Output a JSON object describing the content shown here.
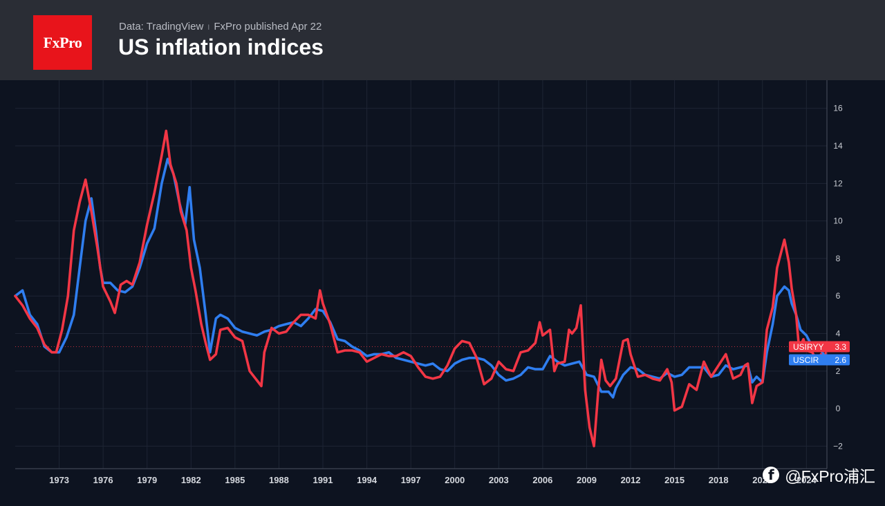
{
  "header": {
    "logo_text": "FxPro",
    "source": "Data: TradingView",
    "separator": "I",
    "published": "FxPro published Apr 22",
    "title": "US inflation indices"
  },
  "watermark": {
    "icon": "facebook-icon",
    "text": "@FxPro浦汇"
  },
  "colors": {
    "usiryy": "#f23645",
    "uscir": "#2f7ef0",
    "background": "#0d1320",
    "header": "#2a2d35"
  },
  "chart_data": {
    "type": "line",
    "title": "US inflation indices",
    "x_ticks": [
      1973,
      1976,
      1979,
      1982,
      1985,
      1988,
      1991,
      1994,
      1997,
      2000,
      2003,
      2006,
      2009,
      2012,
      2015,
      2018,
      2021,
      2024
    ],
    "x_range": [
      1970.0,
      2025.4
    ],
    "y_ticks": [
      -2,
      0,
      2,
      4,
      6,
      8,
      10,
      12,
      14,
      16
    ],
    "y_range": [
      -3.2,
      17.5
    ],
    "grid": true,
    "reference_line": 3.3,
    "series": [
      {
        "name": "USIRYY",
        "last_value": "3.3",
        "points": [
          [
            1970.0,
            6.0
          ],
          [
            1970.5,
            5.5
          ],
          [
            1971.0,
            4.8
          ],
          [
            1971.5,
            4.3
          ],
          [
            1972.0,
            3.4
          ],
          [
            1972.5,
            3.0
          ],
          [
            1972.8,
            3.0
          ],
          [
            1973.2,
            4.2
          ],
          [
            1973.6,
            6.0
          ],
          [
            1974.0,
            9.5
          ],
          [
            1974.4,
            11.0
          ],
          [
            1974.8,
            12.2
          ],
          [
            1975.2,
            10.5
          ],
          [
            1975.6,
            8.6
          ],
          [
            1976.0,
            6.5
          ],
          [
            1976.5,
            5.7
          ],
          [
            1976.8,
            5.1
          ],
          [
            1977.2,
            6.6
          ],
          [
            1977.6,
            6.8
          ],
          [
            1978.0,
            6.6
          ],
          [
            1978.5,
            7.8
          ],
          [
            1979.0,
            9.8
          ],
          [
            1979.5,
            11.5
          ],
          [
            1980.0,
            13.5
          ],
          [
            1980.3,
            14.8
          ],
          [
            1980.6,
            13.0
          ],
          [
            1981.0,
            12.0
          ],
          [
            1981.3,
            10.5
          ],
          [
            1981.7,
            9.5
          ],
          [
            1982.0,
            7.5
          ],
          [
            1982.3,
            6.3
          ],
          [
            1982.7,
            4.5
          ],
          [
            1983.0,
            3.5
          ],
          [
            1983.3,
            2.6
          ],
          [
            1983.7,
            2.9
          ],
          [
            1984.0,
            4.2
          ],
          [
            1984.5,
            4.3
          ],
          [
            1985.0,
            3.8
          ],
          [
            1985.5,
            3.6
          ],
          [
            1986.0,
            2.0
          ],
          [
            1986.5,
            1.5
          ],
          [
            1986.8,
            1.2
          ],
          [
            1987.0,
            3.0
          ],
          [
            1987.5,
            4.3
          ],
          [
            1988.0,
            4.0
          ],
          [
            1988.5,
            4.1
          ],
          [
            1989.0,
            4.6
          ],
          [
            1989.5,
            5.0
          ],
          [
            1990.0,
            5.0
          ],
          [
            1990.5,
            4.8
          ],
          [
            1990.8,
            6.3
          ],
          [
            1991.0,
            5.6
          ],
          [
            1991.5,
            4.5
          ],
          [
            1992.0,
            3.0
          ],
          [
            1992.5,
            3.1
          ],
          [
            1993.0,
            3.1
          ],
          [
            1993.5,
            3.0
          ],
          [
            1994.0,
            2.5
          ],
          [
            1994.5,
            2.7
          ],
          [
            1995.0,
            2.9
          ],
          [
            1995.5,
            2.8
          ],
          [
            1996.0,
            2.8
          ],
          [
            1996.5,
            3.0
          ],
          [
            1997.0,
            2.8
          ],
          [
            1997.5,
            2.2
          ],
          [
            1998.0,
            1.7
          ],
          [
            1998.5,
            1.6
          ],
          [
            1999.0,
            1.7
          ],
          [
            1999.5,
            2.3
          ],
          [
            2000.0,
            3.2
          ],
          [
            2000.5,
            3.6
          ],
          [
            2001.0,
            3.5
          ],
          [
            2001.5,
            2.7
          ],
          [
            2002.0,
            1.3
          ],
          [
            2002.5,
            1.6
          ],
          [
            2003.0,
            2.5
          ],
          [
            2003.5,
            2.1
          ],
          [
            2004.0,
            2.0
          ],
          [
            2004.5,
            3.0
          ],
          [
            2005.0,
            3.1
          ],
          [
            2005.5,
            3.5
          ],
          [
            2005.8,
            4.6
          ],
          [
            2006.0,
            3.9
          ],
          [
            2006.5,
            4.2
          ],
          [
            2006.8,
            2.0
          ],
          [
            2007.0,
            2.4
          ],
          [
            2007.5,
            2.5
          ],
          [
            2007.8,
            4.2
          ],
          [
            2008.0,
            4.0
          ],
          [
            2008.3,
            4.3
          ],
          [
            2008.6,
            5.5
          ],
          [
            2008.9,
            1.0
          ],
          [
            2009.2,
            -1.0
          ],
          [
            2009.5,
            -2.0
          ],
          [
            2009.8,
            1.0
          ],
          [
            2010.0,
            2.6
          ],
          [
            2010.3,
            1.5
          ],
          [
            2010.6,
            1.2
          ],
          [
            2011.0,
            1.6
          ],
          [
            2011.5,
            3.6
          ],
          [
            2011.8,
            3.7
          ],
          [
            2012.0,
            2.9
          ],
          [
            2012.5,
            1.7
          ],
          [
            2013.0,
            1.8
          ],
          [
            2013.5,
            1.6
          ],
          [
            2014.0,
            1.5
          ],
          [
            2014.5,
            2.1
          ],
          [
            2014.8,
            1.4
          ],
          [
            2015.0,
            -0.1
          ],
          [
            2015.5,
            0.1
          ],
          [
            2016.0,
            1.3
          ],
          [
            2016.5,
            1.0
          ],
          [
            2017.0,
            2.5
          ],
          [
            2017.5,
            1.7
          ],
          [
            2018.0,
            2.3
          ],
          [
            2018.5,
            2.9
          ],
          [
            2019.0,
            1.6
          ],
          [
            2019.5,
            1.8
          ],
          [
            2019.8,
            2.3
          ],
          [
            2020.0,
            2.4
          ],
          [
            2020.3,
            0.3
          ],
          [
            2020.6,
            1.2
          ],
          [
            2021.0,
            1.4
          ],
          [
            2021.3,
            4.2
          ],
          [
            2021.7,
            5.4
          ],
          [
            2022.0,
            7.5
          ],
          [
            2022.5,
            9.0
          ],
          [
            2022.8,
            7.8
          ],
          [
            2023.0,
            6.4
          ],
          [
            2023.3,
            5.0
          ],
          [
            2023.5,
            3.2
          ],
          [
            2023.8,
            3.7
          ],
          [
            2024.0,
            3.1
          ],
          [
            2024.4,
            3.0
          ],
          [
            2024.8,
            2.4
          ],
          [
            2025.0,
            2.9
          ],
          [
            2025.2,
            2.4
          ],
          [
            2025.4,
            3.3
          ]
        ]
      },
      {
        "name": "USCIR",
        "last_value": "2.6",
        "points": [
          [
            1970.0,
            6.0
          ],
          [
            1970.5,
            6.3
          ],
          [
            1971.0,
            5.0
          ],
          [
            1971.5,
            4.5
          ],
          [
            1972.0,
            3.3
          ],
          [
            1972.5,
            3.0
          ],
          [
            1973.0,
            3.0
          ],
          [
            1973.5,
            3.8
          ],
          [
            1974.0,
            5.0
          ],
          [
            1974.4,
            7.5
          ],
          [
            1974.8,
            10.0
          ],
          [
            1975.2,
            11.2
          ],
          [
            1975.5,
            9.5
          ],
          [
            1975.8,
            7.5
          ],
          [
            1976.0,
            6.7
          ],
          [
            1976.5,
            6.7
          ],
          [
            1977.0,
            6.3
          ],
          [
            1977.5,
            6.2
          ],
          [
            1978.0,
            6.5
          ],
          [
            1978.5,
            7.5
          ],
          [
            1979.0,
            8.8
          ],
          [
            1979.5,
            9.6
          ],
          [
            1980.0,
            12.0
          ],
          [
            1980.4,
            13.3
          ],
          [
            1980.8,
            12.5
          ],
          [
            1981.2,
            11.0
          ],
          [
            1981.6,
            9.8
          ],
          [
            1981.9,
            11.8
          ],
          [
            1982.2,
            9.0
          ],
          [
            1982.6,
            7.5
          ],
          [
            1983.0,
            5.0
          ],
          [
            1983.3,
            3.0
          ],
          [
            1983.7,
            4.8
          ],
          [
            1984.0,
            5.0
          ],
          [
            1984.5,
            4.8
          ],
          [
            1985.0,
            4.3
          ],
          [
            1985.5,
            4.1
          ],
          [
            1986.0,
            4.0
          ],
          [
            1986.5,
            3.9
          ],
          [
            1987.0,
            4.1
          ],
          [
            1987.5,
            4.2
          ],
          [
            1988.0,
            4.4
          ],
          [
            1988.5,
            4.5
          ],
          [
            1989.0,
            4.6
          ],
          [
            1989.5,
            4.4
          ],
          [
            1990.0,
            4.8
          ],
          [
            1990.5,
            5.3
          ],
          [
            1991.0,
            5.2
          ],
          [
            1991.5,
            4.6
          ],
          [
            1992.0,
            3.7
          ],
          [
            1992.5,
            3.6
          ],
          [
            1993.0,
            3.3
          ],
          [
            1993.5,
            3.1
          ],
          [
            1994.0,
            2.8
          ],
          [
            1994.5,
            2.9
          ],
          [
            1995.0,
            2.9
          ],
          [
            1995.5,
            3.0
          ],
          [
            1996.0,
            2.7
          ],
          [
            1996.5,
            2.6
          ],
          [
            1997.0,
            2.5
          ],
          [
            1997.5,
            2.4
          ],
          [
            1998.0,
            2.3
          ],
          [
            1998.5,
            2.4
          ],
          [
            1999.0,
            2.1
          ],
          [
            1999.5,
            2.0
          ],
          [
            2000.0,
            2.4
          ],
          [
            2000.5,
            2.6
          ],
          [
            2001.0,
            2.7
          ],
          [
            2001.5,
            2.7
          ],
          [
            2002.0,
            2.6
          ],
          [
            2002.5,
            2.3
          ],
          [
            2003.0,
            1.8
          ],
          [
            2003.5,
            1.5
          ],
          [
            2004.0,
            1.6
          ],
          [
            2004.5,
            1.8
          ],
          [
            2005.0,
            2.2
          ],
          [
            2005.5,
            2.1
          ],
          [
            2006.0,
            2.1
          ],
          [
            2006.5,
            2.8
          ],
          [
            2007.0,
            2.5
          ],
          [
            2007.5,
            2.3
          ],
          [
            2008.0,
            2.4
          ],
          [
            2008.5,
            2.5
          ],
          [
            2009.0,
            1.8
          ],
          [
            2009.5,
            1.7
          ],
          [
            2010.0,
            0.9
          ],
          [
            2010.5,
            0.9
          ],
          [
            2010.8,
            0.6
          ],
          [
            2011.0,
            1.1
          ],
          [
            2011.5,
            1.8
          ],
          [
            2012.0,
            2.2
          ],
          [
            2012.5,
            2.1
          ],
          [
            2013.0,
            1.8
          ],
          [
            2013.5,
            1.7
          ],
          [
            2014.0,
            1.6
          ],
          [
            2014.5,
            1.9
          ],
          [
            2015.0,
            1.7
          ],
          [
            2015.5,
            1.8
          ],
          [
            2016.0,
            2.2
          ],
          [
            2016.5,
            2.2
          ],
          [
            2017.0,
            2.2
          ],
          [
            2017.5,
            1.7
          ],
          [
            2018.0,
            1.8
          ],
          [
            2018.5,
            2.3
          ],
          [
            2019.0,
            2.1
          ],
          [
            2019.5,
            2.2
          ],
          [
            2020.0,
            2.3
          ],
          [
            2020.3,
            1.4
          ],
          [
            2020.6,
            1.7
          ],
          [
            2021.0,
            1.4
          ],
          [
            2021.3,
            3.0
          ],
          [
            2021.7,
            4.5
          ],
          [
            2022.0,
            6.0
          ],
          [
            2022.5,
            6.5
          ],
          [
            2022.8,
            6.3
          ],
          [
            2023.0,
            5.6
          ],
          [
            2023.3,
            5.0
          ],
          [
            2023.6,
            4.2
          ],
          [
            2024.0,
            3.9
          ],
          [
            2024.4,
            3.3
          ],
          [
            2024.8,
            3.2
          ],
          [
            2025.0,
            3.1
          ],
          [
            2025.4,
            2.6
          ]
        ]
      }
    ]
  }
}
